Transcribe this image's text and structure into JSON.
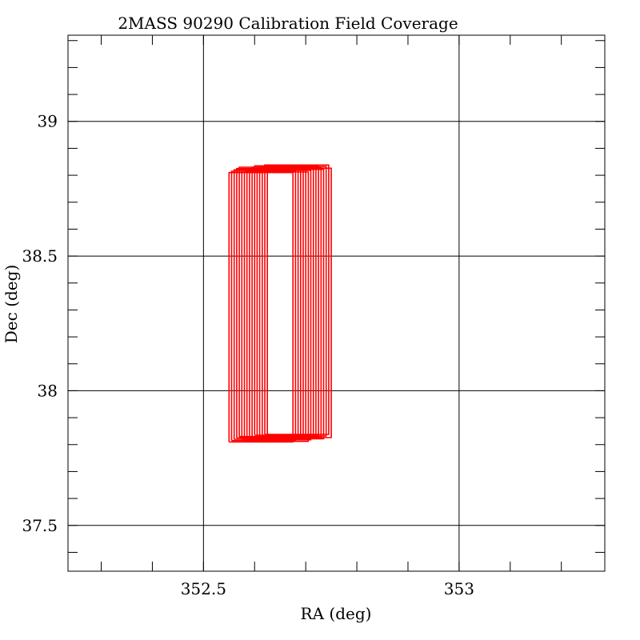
{
  "chart_data": {
    "type": "line",
    "title": "2MASS 90290 Calibration Field Coverage",
    "xlabel": "RA (deg)",
    "ylabel": "Dec (deg)",
    "xlim": [
      352.235,
      353.285
    ],
    "ylim": [
      37.33,
      39.32
    ],
    "x_reversed": false,
    "grid": true,
    "x_ticks": [
      {
        "value": 352.5,
        "label": "352.5"
      },
      {
        "value": 353.0,
        "label": "353"
      }
    ],
    "y_ticks": [
      {
        "value": 37.5,
        "label": "37.5"
      },
      {
        "value": 38.0,
        "label": "38"
      },
      {
        "value": 38.5,
        "label": "38.5"
      },
      {
        "value": 39.0,
        "label": "39"
      }
    ],
    "x_minor_step": 0.1,
    "y_minor_step": 0.1,
    "series_color": "#ff0000",
    "series": [
      {
        "values": [
          [
            352.55,
            37.81
          ],
          [
            352.675,
            37.81
          ],
          [
            352.675,
            38.81
          ],
          [
            352.55,
            38.81
          ],
          [
            352.55,
            37.81
          ]
        ]
      },
      {
        "values": [
          [
            352.555,
            37.815
          ],
          [
            352.68,
            37.815
          ],
          [
            352.68,
            38.815
          ],
          [
            352.555,
            38.815
          ],
          [
            352.555,
            37.815
          ]
        ]
      },
      {
        "values": [
          [
            352.56,
            37.82
          ],
          [
            352.685,
            37.82
          ],
          [
            352.685,
            38.82
          ],
          [
            352.56,
            38.82
          ],
          [
            352.56,
            37.82
          ]
        ]
      },
      {
        "values": [
          [
            352.565,
            37.825
          ],
          [
            352.69,
            37.825
          ],
          [
            352.69,
            38.825
          ],
          [
            352.565,
            38.825
          ],
          [
            352.565,
            37.825
          ]
        ]
      },
      {
        "values": [
          [
            352.57,
            37.83
          ],
          [
            352.695,
            37.83
          ],
          [
            352.695,
            38.83
          ],
          [
            352.57,
            38.83
          ],
          [
            352.57,
            37.83
          ]
        ]
      },
      {
        "values": [
          [
            352.575,
            37.82
          ],
          [
            352.7,
            37.82
          ],
          [
            352.7,
            38.82
          ],
          [
            352.575,
            38.82
          ],
          [
            352.575,
            37.82
          ]
        ]
      },
      {
        "values": [
          [
            352.58,
            37.812
          ],
          [
            352.705,
            37.812
          ],
          [
            352.705,
            38.812
          ],
          [
            352.58,
            38.812
          ],
          [
            352.58,
            37.812
          ]
        ]
      },
      {
        "values": [
          [
            352.585,
            37.818
          ],
          [
            352.71,
            37.818
          ],
          [
            352.71,
            38.818
          ],
          [
            352.585,
            38.818
          ],
          [
            352.585,
            37.818
          ]
        ]
      },
      {
        "values": [
          [
            352.59,
            37.824
          ],
          [
            352.715,
            37.824
          ],
          [
            352.715,
            38.824
          ],
          [
            352.59,
            38.824
          ],
          [
            352.59,
            37.824
          ]
        ]
      },
      {
        "values": [
          [
            352.595,
            37.83
          ],
          [
            352.72,
            37.83
          ],
          [
            352.72,
            38.83
          ],
          [
            352.595,
            38.83
          ],
          [
            352.595,
            37.83
          ]
        ]
      },
      {
        "values": [
          [
            352.6,
            37.835
          ],
          [
            352.725,
            37.835
          ],
          [
            352.725,
            38.835
          ],
          [
            352.6,
            38.835
          ],
          [
            352.6,
            37.835
          ]
        ]
      },
      {
        "values": [
          [
            352.605,
            37.828
          ],
          [
            352.73,
            37.828
          ],
          [
            352.73,
            38.828
          ],
          [
            352.605,
            38.828
          ],
          [
            352.605,
            37.828
          ]
        ]
      },
      {
        "values": [
          [
            352.61,
            37.822
          ],
          [
            352.735,
            37.822
          ],
          [
            352.735,
            38.822
          ],
          [
            352.61,
            38.822
          ],
          [
            352.61,
            37.822
          ]
        ]
      },
      {
        "values": [
          [
            352.615,
            37.832
          ],
          [
            352.74,
            37.832
          ],
          [
            352.74,
            38.832
          ],
          [
            352.615,
            38.832
          ],
          [
            352.615,
            37.832
          ]
        ]
      },
      {
        "values": [
          [
            352.62,
            37.838
          ],
          [
            352.745,
            37.838
          ],
          [
            352.745,
            38.838
          ],
          [
            352.62,
            38.838
          ],
          [
            352.62,
            37.838
          ]
        ]
      },
      {
        "values": [
          [
            352.625,
            37.826
          ],
          [
            352.75,
            37.826
          ],
          [
            352.75,
            38.826
          ],
          [
            352.625,
            38.826
          ],
          [
            352.625,
            37.826
          ]
        ]
      }
    ]
  }
}
